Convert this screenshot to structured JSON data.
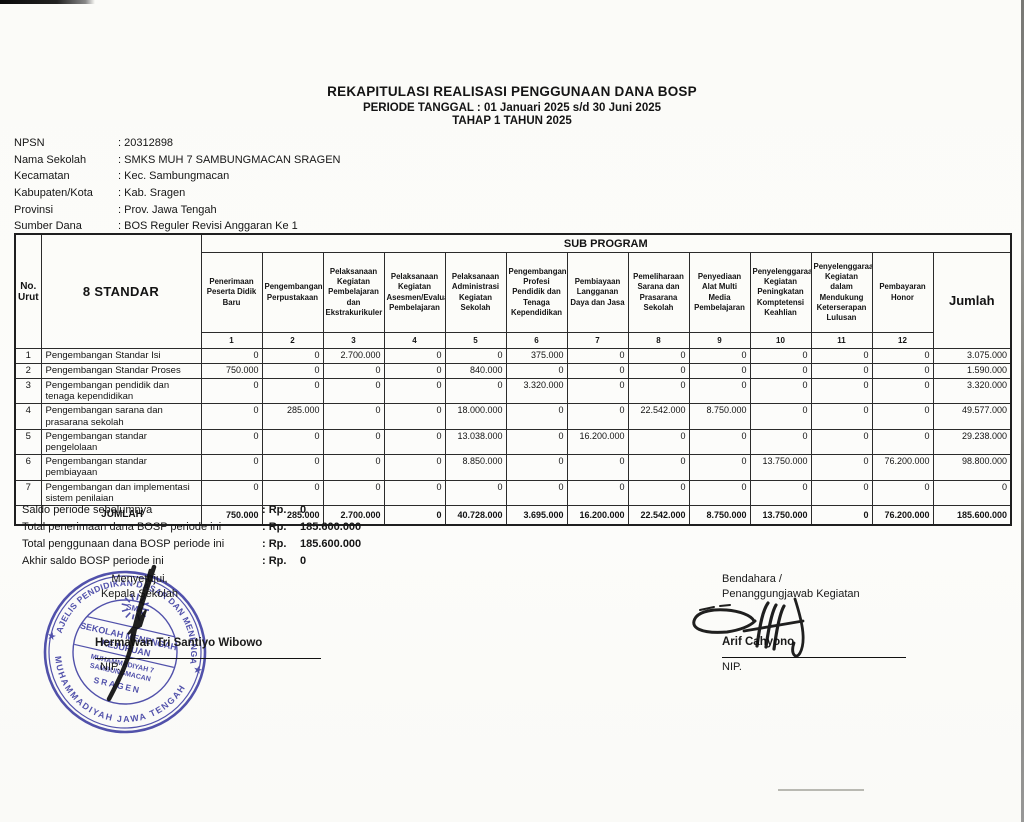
{
  "title": {
    "line1": "REKAPITULASI REALISASI PENGGUNAAN DANA BOSP",
    "line2": "PERIODE TANGGAL : 01 Januari 2025 s/d 30 Juni 2025",
    "line3": "TAHAP 1 TAHUN 2025"
  },
  "info": {
    "rows": [
      {
        "label": "NPSN",
        "value": ": 20312898"
      },
      {
        "label": "Nama Sekolah",
        "value": ": SMKS MUH 7 SAMBUNGMACAN SRAGEN"
      },
      {
        "label": "Kecamatan",
        "value": ": Kec. Sambungmacan"
      },
      {
        "label": "Kabupaten/Kota",
        "value": ": Kab. Sragen"
      },
      {
        "label": "Provinsi",
        "value": ": Prov. Jawa Tengah"
      },
      {
        "label": "Sumber Dana",
        "value": ": BOS Reguler Revisi Anggaran Ke 1"
      }
    ]
  },
  "table": {
    "no_urut_label": "No. Urut",
    "standar_label": "8 STANDAR",
    "sub_program_label": "SUB PROGRAM",
    "jumlah_label": "Jumlah",
    "columns": [
      {
        "num": "1",
        "label": "Penerimaan Peserta Didik Baru"
      },
      {
        "num": "2",
        "label": "Pengembangan Perpustakaan"
      },
      {
        "num": "3",
        "label": "Pelaksanaan Kegiatan Pembelajaran dan Ekstrakurikuler"
      },
      {
        "num": "4",
        "label": "Pelaksanaan Kegiatan Asesmen/Evaluasi Pembelajaran"
      },
      {
        "num": "5",
        "label": "Pelaksanaan Administrasi Kegiatan Sekolah"
      },
      {
        "num": "6",
        "label": "Pengembangan Profesi Pendidik dan Tenaga Kependidikan"
      },
      {
        "num": "7",
        "label": "Pembiayaan Langganan Daya dan Jasa"
      },
      {
        "num": "8",
        "label": "Pemeliharaan Sarana dan Prasarana Sekolah"
      },
      {
        "num": "9",
        "label": "Penyediaan Alat Multi Media Pembelajaran"
      },
      {
        "num": "10",
        "label": "Penyelenggaraan Kegiatan Peningkatan Komptetensi Keahlian"
      },
      {
        "num": "11",
        "label": "Penyelenggaraan Kegiatan dalam Mendukung Keterserapan Lulusan"
      },
      {
        "num": "12",
        "label": "Pembayaran Honor"
      }
    ],
    "rows": [
      {
        "no": "1",
        "label": "Pengembangan Standar Isi",
        "values": [
          "0",
          "0",
          "2.700.000",
          "0",
          "0",
          "375.000",
          "0",
          "0",
          "0",
          "0",
          "0",
          "0"
        ],
        "total": "3.075.000"
      },
      {
        "no": "2",
        "label": "Pengembangan Standar Proses",
        "values": [
          "750.000",
          "0",
          "0",
          "0",
          "840.000",
          "0",
          "0",
          "0",
          "0",
          "0",
          "0",
          "0"
        ],
        "total": "1.590.000"
      },
      {
        "no": "3",
        "label": "Pengembangan pendidik dan tenaga kependidikan",
        "values": [
          "0",
          "0",
          "0",
          "0",
          "0",
          "3.320.000",
          "0",
          "0",
          "0",
          "0",
          "0",
          "0"
        ],
        "total": "3.320.000"
      },
      {
        "no": "4",
        "label": "Pengembangan sarana dan prasarana sekolah",
        "values": [
          "0",
          "285.000",
          "0",
          "0",
          "18.000.000",
          "0",
          "0",
          "22.542.000",
          "8.750.000",
          "0",
          "0",
          "0"
        ],
        "total": "49.577.000"
      },
      {
        "no": "5",
        "label": "Pengembangan standar pengelolaan",
        "values": [
          "0",
          "0",
          "0",
          "0",
          "13.038.000",
          "0",
          "16.200.000",
          "0",
          "0",
          "0",
          "0",
          "0"
        ],
        "total": "29.238.000"
      },
      {
        "no": "6",
        "label": "Pengembangan standar pembiayaan",
        "values": [
          "0",
          "0",
          "0",
          "0",
          "8.850.000",
          "0",
          "0",
          "0",
          "0",
          "13.750.000",
          "0",
          "76.200.000"
        ],
        "total": "98.800.000"
      },
      {
        "no": "7",
        "label": "Pengembangan dan implementasi sistem penilaian",
        "values": [
          "0",
          "0",
          "0",
          "0",
          "0",
          "0",
          "0",
          "0",
          "0",
          "0",
          "0",
          "0"
        ],
        "total": "0"
      }
    ],
    "footer": {
      "label": "JUMLAH",
      "values": [
        "750.000",
        "285.000",
        "2.700.000",
        "0",
        "40.728.000",
        "3.695.000",
        "16.200.000",
        "22.542.000",
        "8.750.000",
        "13.750.000",
        "0",
        "76.200.000"
      ],
      "total": "185.600.000"
    }
  },
  "summary": {
    "rows": [
      {
        "label": "Saldo periode sebelumnya",
        "rp": ": Rp.",
        "value": "0"
      },
      {
        "label": "Total penerimaan dana BOSP periode ini",
        "rp": ": Rp.",
        "value": "185.600.000"
      },
      {
        "label": "Total penggunaan dana BOSP periode ini",
        "rp": ": Rp.",
        "value": "185.600.000"
      },
      {
        "label": "Akhir saldo BOSP periode ini",
        "rp": ": Rp.",
        "value": "0"
      }
    ]
  },
  "signatures": {
    "left": {
      "line1": "Menyetujui,",
      "line2": "Kepala Sekolah",
      "name": "Hermawan Tri Santiyo Wibowo",
      "nip": "NIP."
    },
    "right": {
      "line1": "Bendahara /",
      "line2": "Penanggungjawab Kegiatan",
      "name": "Arif Cahyono",
      "nip": "NIP."
    }
  },
  "stamp": {
    "ring_top": "MAJELIS PENDIDIKAN DASAR DAN MENENGAH",
    "ring_bottom": "MUHAMMADIYAH JAWA TENGAH",
    "inner": [
      "SEKOLAH MENENGAH",
      "KEJURUAN",
      "MUHAMMADIYAH 7",
      "SAMBUNGMACAN",
      "SRAGEN"
    ],
    "logo": "SMK",
    "star": "★",
    "color": "#2d2d9e"
  },
  "colors": {
    "ink": "#1a1a1a",
    "stamp_blue": "#2d2d9e"
  }
}
